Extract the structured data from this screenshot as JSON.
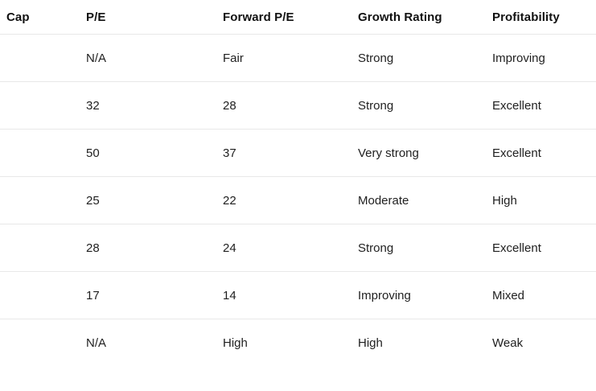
{
  "colors": {
    "background": "#ffffff",
    "header_text": "#111111",
    "body_text": "#1f1f1f",
    "divider": "#e8e8e8"
  },
  "table": {
    "columns": [
      {
        "key": "cap",
        "label": "Cap"
      },
      {
        "key": "pe",
        "label": "P/E"
      },
      {
        "key": "forward_pe",
        "label": "Forward P/E"
      },
      {
        "key": "growth_rating",
        "label": "Growth Rating"
      },
      {
        "key": "profitability",
        "label": "Profitability"
      }
    ],
    "rows": [
      {
        "cap": "",
        "pe": "N/A",
        "forward_pe": "Fair",
        "growth_rating": "Strong",
        "profitability": "Improving"
      },
      {
        "cap": "",
        "pe": "32",
        "forward_pe": "28",
        "growth_rating": "Strong",
        "profitability": "Excellent"
      },
      {
        "cap": "",
        "pe": "50",
        "forward_pe": "37",
        "growth_rating": "Very strong",
        "profitability": "Excellent"
      },
      {
        "cap": "",
        "pe": "25",
        "forward_pe": "22",
        "growth_rating": "Moderate",
        "profitability": "High"
      },
      {
        "cap": "",
        "pe": "28",
        "forward_pe": "24",
        "growth_rating": "Strong",
        "profitability": "Excellent"
      },
      {
        "cap": "",
        "pe": "17",
        "forward_pe": "14",
        "growth_rating": "Improving",
        "profitability": "Mixed"
      },
      {
        "cap": "",
        "pe": "N/A",
        "forward_pe": "High",
        "growth_rating": "High",
        "profitability": "Weak"
      }
    ]
  }
}
